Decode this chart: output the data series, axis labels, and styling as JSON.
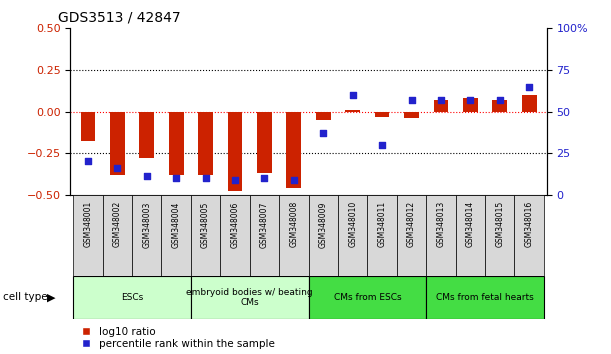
{
  "title": "GDS3513 / 42847",
  "samples": [
    "GSM348001",
    "GSM348002",
    "GSM348003",
    "GSM348004",
    "GSM348005",
    "GSM348006",
    "GSM348007",
    "GSM348008",
    "GSM348009",
    "GSM348010",
    "GSM348011",
    "GSM348012",
    "GSM348013",
    "GSM348014",
    "GSM348015",
    "GSM348016"
  ],
  "log10_ratio": [
    -0.18,
    -0.38,
    -0.28,
    -0.38,
    -0.38,
    -0.48,
    -0.37,
    -0.46,
    -0.05,
    0.01,
    -0.03,
    -0.04,
    0.07,
    0.08,
    0.07,
    0.1
  ],
  "percentile_rank": [
    20,
    16,
    11,
    10,
    10,
    9,
    10,
    9,
    37,
    60,
    30,
    57,
    57,
    57,
    57,
    65
  ],
  "red_bar_color": "#cc2200",
  "blue_dot_color": "#2222cc",
  "ylim_left": [
    -0.5,
    0.5
  ],
  "ylim_right": [
    0,
    100
  ],
  "yticks_left": [
    -0.5,
    -0.25,
    0,
    0.25,
    0.5
  ],
  "yticks_right": [
    0,
    25,
    50,
    75,
    100
  ],
  "cell_type_groups": [
    {
      "label": "ESCs",
      "start": 0,
      "end": 3,
      "color": "#ccffcc"
    },
    {
      "label": "embryoid bodies w/ beating\nCMs",
      "start": 4,
      "end": 7,
      "color": "#ccffcc"
    },
    {
      "label": "CMs from ESCs",
      "start": 8,
      "end": 11,
      "color": "#44dd44"
    },
    {
      "label": "CMs from fetal hearts",
      "start": 12,
      "end": 15,
      "color": "#44dd44"
    }
  ],
  "legend_red_label": "log10 ratio",
  "legend_blue_label": "percentile rank within the sample",
  "cell_type_label": "cell type"
}
